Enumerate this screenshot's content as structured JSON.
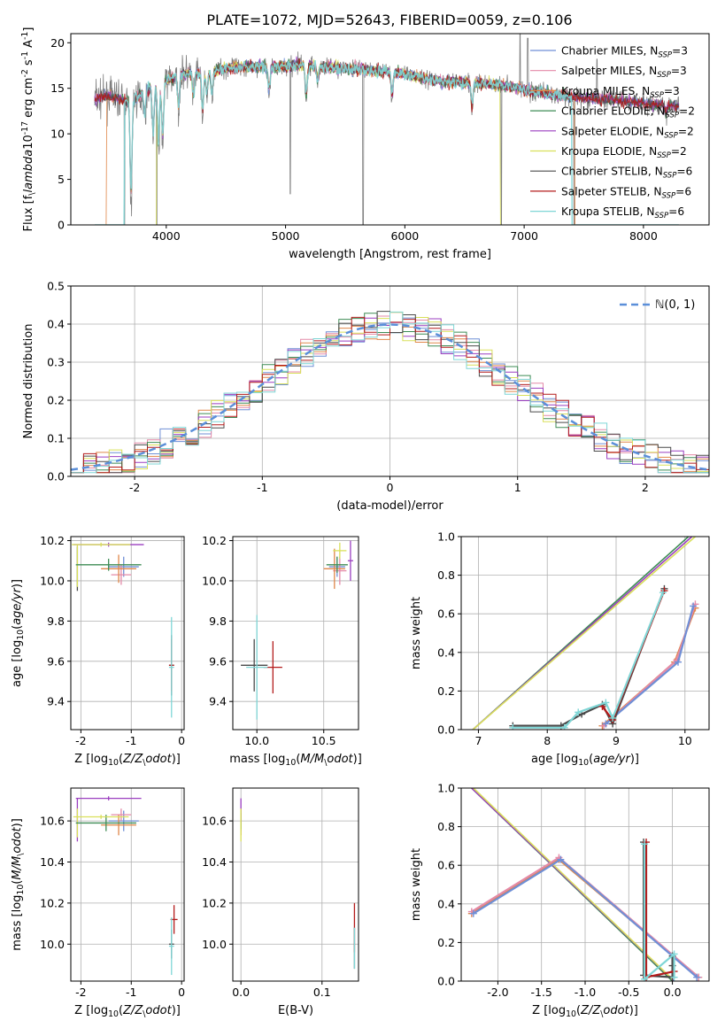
{
  "figure_title": "PLATE=1072, MJD=52643, FIBERID=0059, z=0.106",
  "colors": {
    "Chabrier MILES": "#6f8fd6",
    "Salpeter MILES": "#e48aa8",
    "Kroupa MILES": "#e0874a",
    "Chabrier ELODIE": "#3e8c55",
    "Salpeter ELODIE": "#9b3fc0",
    "Kroupa ELODIE": "#d9e05a",
    "Chabrier STELIB": "#4a4a4a",
    "Salpeter STELIB": "#b31b1b",
    "Kroupa STELIB": "#7fd6d6",
    "data": "#7f7f7f",
    "normal_curve": "#5b8fd9"
  },
  "chart_data": [
    {
      "id": "spectrum",
      "type": "line",
      "xlabel": "wavelength [Angstrom, rest frame]",
      "ylabel": "Flux [f$_\\lambda$10$^{-17}$ erg cm$^{-2}$ s$^{-1}$ A$^{-1}$]",
      "xlim": [
        3200,
        8550
      ],
      "ylim": [
        0,
        21
      ],
      "xticks": [
        4000,
        5000,
        6000,
        7000,
        8000
      ],
      "yticks": [
        0,
        5,
        10,
        15,
        20
      ],
      "legend_loc": "upper right",
      "grid": false,
      "legend": [
        {
          "pre": "Chabrier MILES, N",
          "sub": "SSP",
          "post": "=3",
          "color": "#6f8fd6"
        },
        {
          "pre": "Salpeter MILES, N",
          "sub": "SSP",
          "post": "=3",
          "color": "#e48aa8"
        },
        {
          "pre": "Kroupa MILES, N",
          "sub": "SSP",
          "post": "=3",
          "color": "#e0874a"
        },
        {
          "pre": "Chabrier ELODIE, N",
          "sub": "SSP",
          "post": "=2",
          "color": "#3e8c55"
        },
        {
          "pre": "Salpeter ELODIE, N",
          "sub": "SSP",
          "post": "=2",
          "color": "#9b3fc0"
        },
        {
          "pre": "Kroupa ELODIE, N",
          "sub": "SSP",
          "post": "=2",
          "color": "#d9e05a"
        },
        {
          "pre": "Chabrier STELIB, N",
          "sub": "SSP",
          "post": "=6",
          "color": "#4a4a4a"
        },
        {
          "pre": "Salpeter STELIB, N",
          "sub": "SSP",
          "post": "=6",
          "color": "#b31b1b"
        },
        {
          "pre": "Kroupa STELIB, N",
          "sub": "SSP",
          "post": "=6",
          "color": "#7fd6d6"
        }
      ],
      "continuum": [
        [
          3400,
          13.8
        ],
        [
          3500,
          14.2
        ],
        [
          3700,
          13.5
        ],
        [
          3850,
          15.0
        ],
        [
          4000,
          15.8
        ],
        [
          4100,
          16.5
        ],
        [
          4300,
          16.8
        ],
        [
          4500,
          17.2
        ],
        [
          4700,
          17.4
        ],
        [
          4900,
          17.3
        ],
        [
          5100,
          17.6
        ],
        [
          5300,
          17.4
        ],
        [
          5500,
          17.2
        ],
        [
          5700,
          17.0
        ],
        [
          5900,
          16.8
        ],
        [
          6100,
          16.3
        ],
        [
          6300,
          15.8
        ],
        [
          6500,
          15.7
        ],
        [
          6700,
          15.5
        ],
        [
          6900,
          15.2
        ],
        [
          7100,
          14.6
        ],
        [
          7300,
          14.2
        ],
        [
          7500,
          14.0
        ],
        [
          7700,
          13.8
        ],
        [
          7900,
          13.5
        ],
        [
          8100,
          13.3
        ],
        [
          8300,
          13.0
        ]
      ],
      "absorption_lines": [
        [
          3705,
          -12
        ],
        [
          3820,
          -3
        ],
        [
          3890,
          -6
        ],
        [
          3935,
          -8
        ],
        [
          3970,
          -7
        ],
        [
          4102,
          -4
        ],
        [
          4227,
          -3
        ],
        [
          4305,
          -5
        ],
        [
          4340,
          -3
        ],
        [
          4383,
          -3
        ],
        [
          4861,
          -3
        ],
        [
          5173,
          -4
        ],
        [
          5270,
          -2
        ],
        [
          5893,
          -3
        ],
        [
          6563,
          -3
        ],
        [
          8190,
          -1
        ]
      ],
      "dropouts": [
        {
          "x": 3650,
          "y": 0
        },
        {
          "x": 3920,
          "y": 0
        },
        {
          "x": 5040,
          "y": 3.4
        },
        {
          "x": 5650,
          "y": 0
        },
        {
          "x": 6810,
          "y": 0
        },
        {
          "x": 7420,
          "y": 0
        }
      ],
      "spikes": [
        {
          "x": 6965,
          "y": 21
        },
        {
          "x": 7030,
          "y": 20.5
        },
        {
          "x": 7610,
          "y": 18.2
        }
      ]
    },
    {
      "id": "residuals",
      "type": "histogram",
      "xlabel": "(data-model)/error",
      "ylabel": "Normed distribution",
      "xlim": [
        -2.5,
        2.5
      ],
      "ylim": [
        0,
        0.5
      ],
      "xticks": [
        -2,
        -1,
        0,
        1,
        2
      ],
      "yticks": [
        0.0,
        0.1,
        0.2,
        0.3,
        0.4,
        0.5
      ],
      "grid": true,
      "legend_loc": "upper right",
      "normal_curve_label": "$\\mathcal{N}(0,1)$",
      "bin_width": 0.1,
      "bin_start": -2.5
    },
    {
      "id": "age_vs_Z",
      "type": "scatter",
      "xlabel": "Z [log$_{10}$($Z/Z_\\odot$)]",
      "ylabel": "age  [log$_{10}$($age/yr$)]",
      "xlim": [
        -2.2,
        0.05
      ],
      "ylim": [
        9.26,
        10.22
      ],
      "xticks": [
        -2,
        -1,
        0
      ],
      "yticks": [
        9.4,
        9.6,
        9.8,
        10.0,
        10.2
      ],
      "grid": true,
      "points": [
        {
          "x": -1.15,
          "y": 10.07,
          "xerr": 0.3,
          "yerr": 0.05,
          "color": "#6f8fd6"
        },
        {
          "x": -1.2,
          "y": 10.03,
          "xerr": 0.2,
          "yerr": 0.05,
          "color": "#e48aa8"
        },
        {
          "x": -1.25,
          "y": 10.06,
          "xerr": 0.35,
          "yerr": 0.07,
          "color": "#e0874a"
        },
        {
          "x": -1.45,
          "y": 10.08,
          "xerr": 0.65,
          "yerr": 0.03,
          "color": "#3e8c55"
        },
        {
          "x": -1.45,
          "y": 10.18,
          "xerr": 0.7,
          "yerr": 0.01,
          "color": "#9b3fc0"
        },
        {
          "x": -1.6,
          "y": 10.18,
          "xerr": 0.58,
          "yerr": 0.01,
          "color": "#d9e05a"
        },
        {
          "x": -0.2,
          "y": 9.58,
          "xerr": 0.05,
          "yerr": 0.15,
          "color": "#4a4a4a"
        },
        {
          "x": -0.2,
          "y": 9.58,
          "xerr": 0.05,
          "yerr": 0.13,
          "color": "#b31b1b"
        },
        {
          "x": -0.2,
          "y": 9.57,
          "xerr": 0.05,
          "yerr": 0.25,
          "color": "#7fd6d6"
        }
      ],
      "edge_bars": [
        {
          "x": -2.07,
          "y1": 9.95,
          "y2": 10.17,
          "color": "#4a4a4a"
        },
        {
          "x": -2.07,
          "y1": 9.97,
          "y2": 10.18,
          "color": "#d9e05a"
        }
      ]
    },
    {
      "id": "age_vs_mass",
      "type": "scatter",
      "xlabel": "mass [log$_{10}$($M/M_\\odot$)]",
      "ylabel": "",
      "xlim": [
        9.82,
        10.76
      ],
      "ylim": [
        9.26,
        10.22
      ],
      "xticks": [
        10.0,
        10.5
      ],
      "yticks": [
        9.4,
        9.6,
        9.8,
        10.0,
        10.2
      ],
      "grid": true,
      "points": [
        {
          "x": 10.6,
          "y": 10.07,
          "xerr": 0.06,
          "yerr": 0.05,
          "color": "#6f8fd6"
        },
        {
          "x": 10.62,
          "y": 10.05,
          "xerr": 0.05,
          "yerr": 0.07,
          "color": "#e48aa8"
        },
        {
          "x": 10.58,
          "y": 10.06,
          "xerr": 0.08,
          "yerr": 0.1,
          "color": "#e0874a"
        },
        {
          "x": 10.6,
          "y": 10.08,
          "xerr": 0.08,
          "yerr": 0.04,
          "color": "#3e8c55"
        },
        {
          "x": 10.7,
          "y": 10.1,
          "xerr": 0.02,
          "yerr": 0.1,
          "color": "#9b3fc0"
        },
        {
          "x": 10.62,
          "y": 10.15,
          "xerr": 0.05,
          "yerr": 0.04,
          "color": "#d9e05a"
        },
        {
          "x": 9.98,
          "y": 9.58,
          "xerr": 0.1,
          "yerr": 0.13,
          "color": "#4a4a4a"
        },
        {
          "x": 10.12,
          "y": 9.57,
          "xerr": 0.07,
          "yerr": 0.13,
          "color": "#b31b1b"
        },
        {
          "x": 10.0,
          "y": 9.57,
          "xerr": 0.08,
          "yerr": 0.26,
          "color": "#7fd6d6"
        }
      ]
    },
    {
      "id": "weight_vs_age",
      "type": "line",
      "xlabel": "age  [log$_{10}$($age/yr$)]",
      "ylabel": "mass weight",
      "xlim": [
        6.75,
        10.35
      ],
      "ylim": [
        0,
        1.0
      ],
      "xticks": [
        7,
        8,
        9,
        10
      ],
      "yticks": [
        0.0,
        0.2,
        0.4,
        0.6,
        0.8,
        1.0
      ],
      "grid": true,
      "series": [
        {
          "color": "#3e8c55",
          "pts": [
            [
              6.92,
              0.0
            ],
            [
              10.05,
              1.0
            ]
          ],
          "marker": false
        },
        {
          "color": "#9b3fc0",
          "pts": [
            [
              6.92,
              0.0
            ],
            [
              10.1,
              1.0
            ]
          ],
          "marker": false
        },
        {
          "color": "#d9e05a",
          "pts": [
            [
              6.92,
              0.0
            ],
            [
              10.15,
              1.0
            ]
          ],
          "marker": false
        },
        {
          "color": "#e0874a",
          "pts": [
            [
              8.8,
              0.02
            ],
            [
              9.85,
              0.35
            ],
            [
              10.15,
              0.63
            ]
          ],
          "marker": true
        },
        {
          "color": "#e48aa8",
          "pts": [
            [
              8.82,
              0.02
            ],
            [
              9.88,
              0.36
            ],
            [
              10.15,
              0.65
            ]
          ],
          "marker": true
        },
        {
          "color": "#6f8fd6",
          "pts": [
            [
              8.85,
              0.03
            ],
            [
              9.9,
              0.35
            ],
            [
              10.12,
              0.64
            ]
          ],
          "marker": true
        },
        {
          "color": "#4a4a4a",
          "pts": [
            [
              7.5,
              0.02
            ],
            [
              8.2,
              0.02
            ],
            [
              8.5,
              0.08
            ],
            [
              8.8,
              0.13
            ],
            [
              8.95,
              0.03
            ],
            [
              9.7,
              0.73
            ]
          ],
          "marker": true
        },
        {
          "color": "#b31b1b",
          "pts": [
            [
              8.8,
              0.12
            ],
            [
              8.95,
              0.05
            ],
            [
              9.7,
              0.72
            ]
          ],
          "marker": true
        },
        {
          "color": "#7fd6d6",
          "pts": [
            [
              7.5,
              0.01
            ],
            [
              8.25,
              0.01
            ],
            [
              8.45,
              0.09
            ],
            [
              8.85,
              0.14
            ],
            [
              8.95,
              0.06
            ],
            [
              9.68,
              0.71
            ]
          ],
          "marker": true
        }
      ]
    },
    {
      "id": "mass_vs_Z",
      "type": "scatter",
      "xlabel": "Z [log$_{10}$($Z/Z_\\odot$)]",
      "ylabel": "mass [log$_{10}$($M/M_\\odot$)]",
      "xlim": [
        -2.2,
        0.05
      ],
      "ylim": [
        9.82,
        10.76
      ],
      "xticks": [
        -2,
        -1,
        0
      ],
      "yticks": [
        10.0,
        10.2,
        10.4,
        10.6
      ],
      "grid": true,
      "points": [
        {
          "x": -1.15,
          "y": 10.6,
          "xerr": 0.3,
          "yerr": 0.05,
          "color": "#6f8fd6"
        },
        {
          "x": -1.2,
          "y": 10.63,
          "xerr": 0.2,
          "yerr": 0.03,
          "color": "#e48aa8"
        },
        {
          "x": -1.25,
          "y": 10.58,
          "xerr": 0.35,
          "yerr": 0.05,
          "color": "#e0874a"
        },
        {
          "x": -1.5,
          "y": 10.59,
          "xerr": 0.6,
          "yerr": 0.04,
          "color": "#3e8c55"
        },
        {
          "x": -1.45,
          "y": 10.71,
          "xerr": 0.65,
          "yerr": 0.01,
          "color": "#9b3fc0"
        },
        {
          "x": -1.6,
          "y": 10.62,
          "xerr": 0.55,
          "yerr": 0.01,
          "color": "#d9e05a"
        },
        {
          "x": -0.2,
          "y": 10.0,
          "xerr": 0.05,
          "yerr": 0.07,
          "color": "#4a4a4a"
        },
        {
          "x": -0.15,
          "y": 10.12,
          "xerr": 0.07,
          "yerr": 0.07,
          "color": "#b31b1b"
        },
        {
          "x": -0.2,
          "y": 9.99,
          "xerr": 0.05,
          "yerr": 0.14,
          "color": "#7fd6d6"
        }
      ],
      "edge_bars": [
        {
          "x": -2.07,
          "y1": 10.5,
          "y2": 10.71,
          "color": "#9b3fc0"
        },
        {
          "x": -2.07,
          "y1": 10.52,
          "y2": 10.66,
          "color": "#d9e05a"
        }
      ]
    },
    {
      "id": "mass_vs_EBV",
      "type": "scatter",
      "xlabel": "E(B-V)",
      "ylabel": "",
      "xlim": [
        -0.01,
        0.145
      ],
      "ylim": [
        9.82,
        10.76
      ],
      "xticks": [
        0.0,
        0.1
      ],
      "yticks": [
        10.0,
        10.2,
        10.4,
        10.6
      ],
      "grid": true,
      "points": [
        {
          "x": 0.0,
          "y": 10.6,
          "xerr": 0.0,
          "yerr": 0.05,
          "color": "#6f8fd6"
        },
        {
          "x": 0.0,
          "y": 10.63,
          "xerr": 0.0,
          "yerr": 0.03,
          "color": "#e48aa8"
        },
        {
          "x": 0.0,
          "y": 10.58,
          "xerr": 0.0,
          "yerr": 0.05,
          "color": "#e0874a"
        },
        {
          "x": 0.0,
          "y": 10.6,
          "xerr": 0.0,
          "yerr": 0.04,
          "color": "#3e8c55"
        },
        {
          "x": 0.0,
          "y": 10.65,
          "xerr": 0.0,
          "yerr": 0.06,
          "color": "#9b3fc0"
        },
        {
          "x": 0.0,
          "y": 10.58,
          "xerr": 0.0,
          "yerr": 0.08,
          "color": "#d9e05a"
        },
        {
          "x": 0.14,
          "y": 9.98,
          "xerr": 0.0,
          "yerr": 0.1,
          "color": "#4a4a4a"
        },
        {
          "x": 0.14,
          "y": 10.08,
          "xerr": 0.0,
          "yerr": 0.12,
          "color": "#b31b1b"
        },
        {
          "x": 0.14,
          "y": 9.98,
          "xerr": 0.0,
          "yerr": 0.1,
          "color": "#7fd6d6"
        }
      ]
    },
    {
      "id": "weight_vs_Z",
      "type": "line",
      "xlabel": "Z [log$_{10}$($Z/Z_\\odot$)]",
      "ylabel": "mass weight",
      "xlim": [
        -2.42,
        0.42
      ],
      "ylim": [
        0,
        1.0
      ],
      "xticks": [
        -2.0,
        -1.5,
        -1.0,
        -0.5,
        0.0
      ],
      "yticks": [
        0.0,
        0.2,
        0.4,
        0.6,
        0.8,
        1.0
      ],
      "grid": true,
      "series": [
        {
          "color": "#3e8c55",
          "pts": [
            [
              -2.3,
              1.0
            ],
            [
              0.0,
              0.0
            ]
          ],
          "marker": false
        },
        {
          "color": "#9b3fc0",
          "pts": [
            [
              -2.3,
              1.0
            ],
            [
              0.02,
              0.0
            ]
          ],
          "marker": false
        },
        {
          "color": "#d9e05a",
          "pts": [
            [
              -2.28,
              1.0
            ],
            [
              0.0,
              0.01
            ]
          ],
          "marker": false
        },
        {
          "color": "#e0874a",
          "pts": [
            [
              -2.3,
              0.35
            ],
            [
              -1.3,
              0.63
            ],
            [
              0.3,
              0.02
            ]
          ],
          "marker": true
        },
        {
          "color": "#e48aa8",
          "pts": [
            [
              -2.3,
              0.36
            ],
            [
              -1.3,
              0.64
            ],
            [
              0.3,
              0.02
            ]
          ],
          "marker": true
        },
        {
          "color": "#6f8fd6",
          "pts": [
            [
              -2.28,
              0.35
            ],
            [
              -1.28,
              0.63
            ],
            [
              0.28,
              0.02
            ]
          ],
          "marker": true
        },
        {
          "color": "#4a4a4a",
          "pts": [
            [
              -0.33,
              0.72
            ],
            [
              -0.33,
              0.03
            ],
            [
              0.0,
              0.02
            ],
            [
              0.0,
              0.13
            ],
            [
              0.0,
              0.08
            ]
          ],
          "marker": true
        },
        {
          "color": "#b31b1b",
          "pts": [
            [
              -0.3,
              0.72
            ],
            [
              -0.3,
              0.02
            ],
            [
              0.02,
              0.05
            ]
          ],
          "marker": true
        },
        {
          "color": "#7fd6d6",
          "pts": [
            [
              -0.32,
              0.71
            ],
            [
              -0.32,
              0.01
            ],
            [
              0.02,
              0.14
            ],
            [
              0.02,
              0.02
            ]
          ],
          "marker": true
        }
      ]
    }
  ]
}
